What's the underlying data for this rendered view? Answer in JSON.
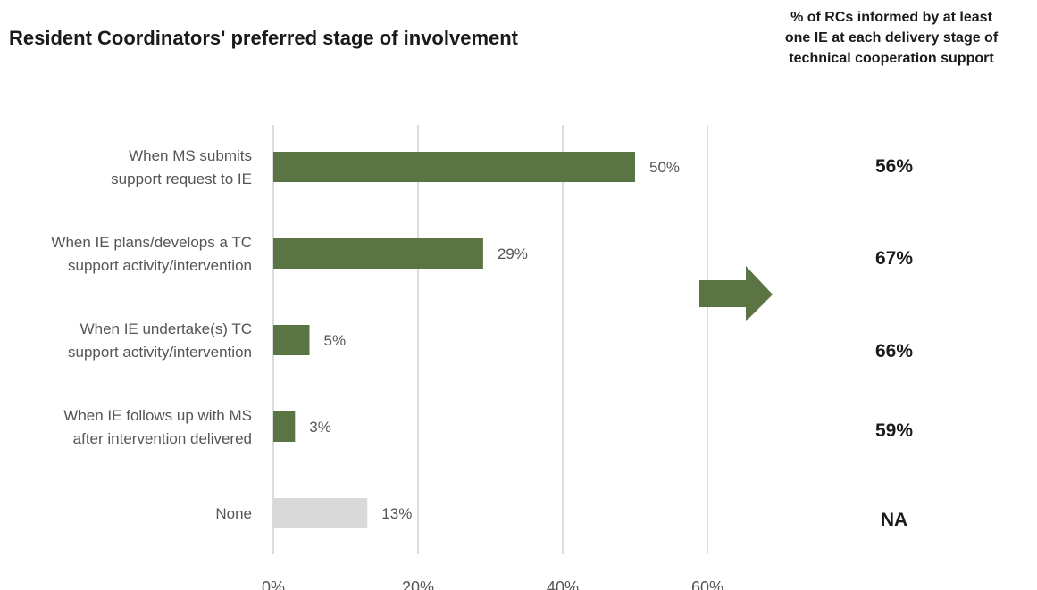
{
  "chart_data": {
    "type": "bar",
    "orientation": "horizontal",
    "title": "Resident Coordinators' preferred stage of involvement",
    "categories": [
      [
        "When MS submits",
        "support request to IE"
      ],
      [
        "When IE plans/develops a TC",
        "support activity/intervention"
      ],
      [
        "When IE undertake(s) TC",
        "support activity/intervention"
      ],
      [
        "When IE follows up with MS",
        "after intervention delivered"
      ],
      [
        "None"
      ]
    ],
    "values": [
      50,
      29,
      5,
      3,
      13
    ],
    "value_labels": [
      "50%",
      "29%",
      "5%",
      "3%",
      "13%"
    ],
    "bar_colors": [
      "#5a7443",
      "#5a7443",
      "#5a7443",
      "#5a7443",
      "#d9d9d9"
    ],
    "xlim": [
      0,
      60
    ],
    "x_ticks": [
      0,
      20,
      40,
      60
    ],
    "x_tick_labels": [
      "0%",
      "20%",
      "40%",
      "60%"
    ],
    "grid": true
  },
  "informed": {
    "header": [
      "% of RCs informed by at least",
      "one IE at each delivery stage of",
      "technical cooperation support"
    ],
    "values": [
      "56%",
      "67%",
      "66%",
      "59%",
      "NA"
    ]
  },
  "colors": {
    "accent": "#5a7443",
    "none_bar": "#d9d9d9",
    "grid": "#d0d0d0"
  }
}
